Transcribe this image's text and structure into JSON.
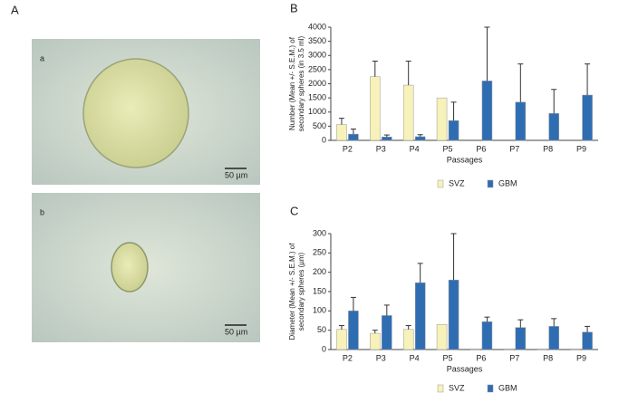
{
  "panel_a": {
    "label": "A",
    "images": [
      {
        "label": "a",
        "scale_bar": "50 µm"
      },
      {
        "label": "b",
        "scale_bar": "50 µm"
      }
    ]
  },
  "chart_data": [
    {
      "type": "bar",
      "label": "B",
      "y_label": [
        "Number (Mean +/- S.E.M.) of",
        "secondary spheres (in 3.5 ml)"
      ],
      "x_label": "Passages",
      "categories": [
        "P2",
        "P3",
        "P4",
        "P5",
        "P6",
        "P7",
        "P8",
        "P9"
      ],
      "series": [
        {
          "name": "SVZ",
          "color": "#f6f2b9",
          "values": [
            560,
            2250,
            1950,
            1500,
            null,
            null,
            null,
            null
          ],
          "errors": [
            220,
            550,
            850,
            0,
            null,
            null,
            null,
            null
          ]
        },
        {
          "name": "GBM",
          "color": "#2f6db3",
          "values": [
            220,
            120,
            130,
            700,
            2100,
            1350,
            950,
            1600
          ],
          "errors": [
            180,
            70,
            70,
            650,
            1900,
            1350,
            850,
            1100
          ]
        }
      ],
      "ylim": [
        0,
        4000
      ],
      "yticks": [
        0,
        500,
        1000,
        1500,
        2000,
        2500,
        3000,
        3500,
        4000
      ]
    },
    {
      "type": "bar",
      "label": "C",
      "y_label": [
        "Diameter (Mean +/- S.E.M.) of",
        "secondary spheres (µm)"
      ],
      "x_label": "Passages",
      "categories": [
        "P2",
        "P3",
        "P4",
        "P5",
        "P6",
        "P7",
        "P8",
        "P9"
      ],
      "series": [
        {
          "name": "SVZ",
          "color": "#f6f2b9",
          "values": [
            52,
            42,
            52,
            65,
            2,
            2,
            2,
            2
          ],
          "errors": [
            10,
            8,
            10,
            0,
            0,
            0,
            0,
            0
          ]
        },
        {
          "name": "GBM",
          "color": "#2f6db3",
          "values": [
            100,
            88,
            173,
            180,
            72,
            57,
            60,
            45
          ],
          "errors": [
            35,
            27,
            50,
            120,
            12,
            20,
            20,
            15
          ]
        }
      ],
      "ylim": [
        0,
        300
      ],
      "yticks": [
        0,
        50,
        100,
        150,
        200,
        250,
        300
      ]
    }
  ]
}
